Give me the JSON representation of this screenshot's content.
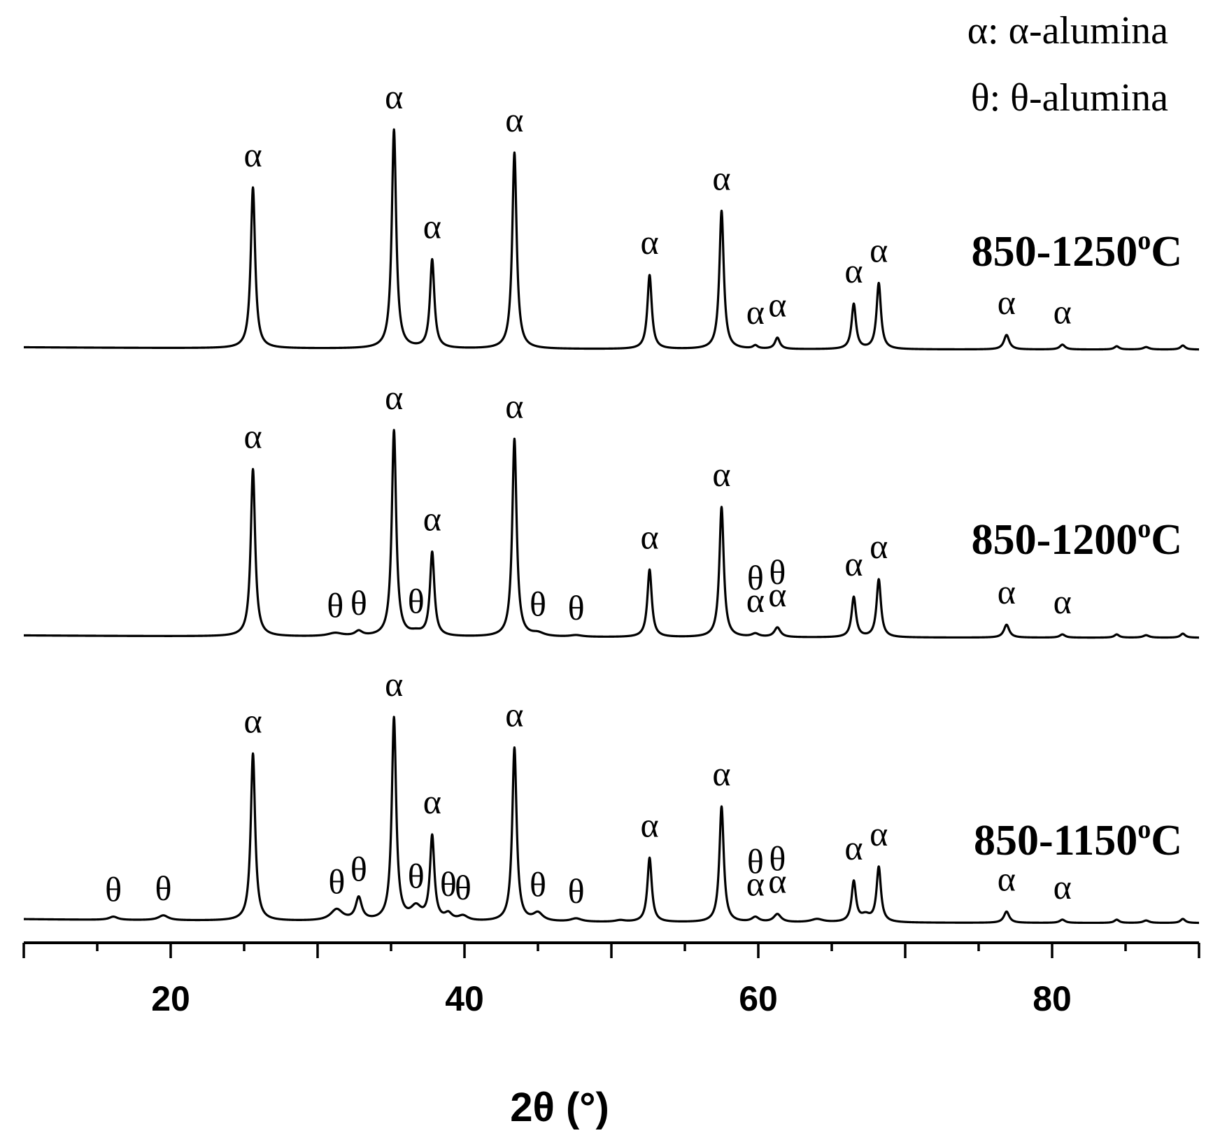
{
  "chart_data": {
    "type": "line",
    "xlabel": "2θ  (°)",
    "xlim": [
      10,
      90
    ],
    "xticks": [
      20,
      40,
      60,
      80
    ],
    "xtick_labels": [
      "20",
      "40",
      "60",
      "80"
    ],
    "grid": false,
    "legend": {
      "placement": "top-right",
      "entries": [
        "α: α-alumina",
        "θ: θ-alumina"
      ]
    },
    "series": [
      {
        "name": "850-1250°C",
        "label_main": "850-1250",
        "label_sup": "o",
        "label_unit": "C",
        "background": 1.5,
        "peaks": [
          {
            "x": 25.6,
            "h": 100,
            "w": 0.18
          },
          {
            "x": 35.2,
            "h": 136,
            "w": 0.18
          },
          {
            "x": 37.8,
            "h": 55,
            "w": 0.18
          },
          {
            "x": 43.4,
            "h": 122,
            "w": 0.18
          },
          {
            "x": 52.6,
            "h": 46,
            "w": 0.18
          },
          {
            "x": 57.5,
            "h": 86,
            "w": 0.18
          },
          {
            "x": 59.8,
            "h": 2,
            "w": 0.2
          },
          {
            "x": 61.3,
            "h": 7,
            "w": 0.2
          },
          {
            "x": 66.5,
            "h": 28,
            "w": 0.18
          },
          {
            "x": 68.2,
            "h": 41,
            "w": 0.18
          },
          {
            "x": 76.9,
            "h": 9,
            "w": 0.22
          },
          {
            "x": 80.7,
            "h": 3,
            "w": 0.22
          },
          {
            "x": 84.4,
            "h": 2,
            "w": 0.2
          },
          {
            "x": 86.4,
            "h": 1.5,
            "w": 0.25
          },
          {
            "x": 88.9,
            "h": 2.5,
            "w": 0.2
          }
        ],
        "annotations": [
          {
            "symbol": "α",
            "x": 25.6
          },
          {
            "symbol": "α",
            "x": 35.2
          },
          {
            "symbol": "α",
            "x": 37.8
          },
          {
            "symbol": "α",
            "x": 43.4
          },
          {
            "symbol": "α",
            "x": 52.6
          },
          {
            "symbol": "α",
            "x": 57.5
          },
          {
            "symbol": "α",
            "x": 59.8
          },
          {
            "symbol": "α",
            "x": 61.3
          },
          {
            "symbol": "α",
            "x": 66.5
          },
          {
            "symbol": "α",
            "x": 68.2
          },
          {
            "symbol": "α",
            "x": 76.9
          },
          {
            "symbol": "α",
            "x": 80.7
          }
        ]
      },
      {
        "name": "850-1200°C",
        "label_main": "850-1200",
        "label_sup": "o",
        "label_unit": "C",
        "background": 1.5,
        "peaks": [
          {
            "x": 25.6,
            "h": 104,
            "w": 0.18
          },
          {
            "x": 31.2,
            "h": 2,
            "w": 0.6
          },
          {
            "x": 32.8,
            "h": 3,
            "w": 0.3
          },
          {
            "x": 35.2,
            "h": 128,
            "w": 0.18
          },
          {
            "x": 36.7,
            "h": 2,
            "w": 0.5
          },
          {
            "x": 37.8,
            "h": 52,
            "w": 0.18
          },
          {
            "x": 43.4,
            "h": 123,
            "w": 0.18
          },
          {
            "x": 45.0,
            "h": 2,
            "w": 0.5
          },
          {
            "x": 47.6,
            "h": 1,
            "w": 0.5
          },
          {
            "x": 52.6,
            "h": 42,
            "w": 0.18
          },
          {
            "x": 57.5,
            "h": 81,
            "w": 0.18
          },
          {
            "x": 59.8,
            "h": 2,
            "w": 0.3
          },
          {
            "x": 61.3,
            "h": 6,
            "w": 0.25
          },
          {
            "x": 66.5,
            "h": 25,
            "w": 0.18
          },
          {
            "x": 68.2,
            "h": 36,
            "w": 0.18
          },
          {
            "x": 76.9,
            "h": 8,
            "w": 0.22
          },
          {
            "x": 80.7,
            "h": 2,
            "w": 0.22
          },
          {
            "x": 84.4,
            "h": 2,
            "w": 0.2
          },
          {
            "x": 86.4,
            "h": 1.5,
            "w": 0.25
          },
          {
            "x": 88.9,
            "h": 2.5,
            "w": 0.2
          }
        ],
        "annotations": [
          {
            "symbol": "α",
            "x": 25.6
          },
          {
            "symbol": "θ",
            "x": 31.2
          },
          {
            "symbol": "θ",
            "x": 32.8
          },
          {
            "symbol": "α",
            "x": 35.2
          },
          {
            "symbol": "θ",
            "x": 36.7
          },
          {
            "symbol": "α",
            "x": 37.8
          },
          {
            "symbol": "α",
            "x": 43.4
          },
          {
            "symbol": "θ",
            "x": 45.0
          },
          {
            "symbol": "θ",
            "x": 47.6
          },
          {
            "symbol": "α",
            "x": 52.6
          },
          {
            "symbol": "α",
            "x": 57.5
          },
          {
            "symbol": "α",
            "x": 59.8
          },
          {
            "symbol": "α",
            "x": 61.3
          },
          {
            "symbol": "θ",
            "x": 59.8
          },
          {
            "symbol": "θ",
            "x": 61.3
          },
          {
            "symbol": "α",
            "x": 66.5
          },
          {
            "symbol": "α",
            "x": 68.2
          },
          {
            "symbol": "α",
            "x": 76.9
          },
          {
            "symbol": "α",
            "x": 80.7
          }
        ]
      },
      {
        "name": "850-1150°C",
        "label_main": "850-1150",
        "label_sup": "o",
        "label_unit": "C",
        "background": 2.5,
        "peaks": [
          {
            "x": 16.1,
            "h": 2,
            "w": 0.35
          },
          {
            "x": 19.5,
            "h": 3,
            "w": 0.4
          },
          {
            "x": 25.6,
            "h": 104,
            "w": 0.18
          },
          {
            "x": 31.3,
            "h": 7,
            "w": 0.5
          },
          {
            "x": 32.8,
            "h": 14,
            "w": 0.25
          },
          {
            "x": 35.2,
            "h": 126,
            "w": 0.18
          },
          {
            "x": 36.7,
            "h": 8,
            "w": 0.45
          },
          {
            "x": 37.8,
            "h": 52,
            "w": 0.18
          },
          {
            "x": 38.9,
            "h": 4,
            "w": 0.3
          },
          {
            "x": 39.9,
            "h": 3,
            "w": 0.4
          },
          {
            "x": 43.4,
            "h": 108,
            "w": 0.18
          },
          {
            "x": 45.0,
            "h": 5,
            "w": 0.4
          },
          {
            "x": 47.6,
            "h": 2,
            "w": 0.45
          },
          {
            "x": 50.6,
            "h": 1,
            "w": 0.4
          },
          {
            "x": 52.6,
            "h": 40,
            "w": 0.18
          },
          {
            "x": 57.5,
            "h": 72,
            "w": 0.18
          },
          {
            "x": 59.8,
            "h": 3,
            "w": 0.3
          },
          {
            "x": 61.3,
            "h": 5,
            "w": 0.3
          },
          {
            "x": 64.0,
            "h": 2,
            "w": 0.5
          },
          {
            "x": 66.5,
            "h": 25,
            "w": 0.18
          },
          {
            "x": 67.3,
            "h": 4,
            "w": 0.4
          },
          {
            "x": 68.2,
            "h": 34,
            "w": 0.18
          },
          {
            "x": 76.9,
            "h": 7,
            "w": 0.22
          },
          {
            "x": 80.7,
            "h": 2,
            "w": 0.22
          },
          {
            "x": 84.4,
            "h": 2,
            "w": 0.2
          },
          {
            "x": 86.4,
            "h": 1.5,
            "w": 0.25
          },
          {
            "x": 88.9,
            "h": 2.5,
            "w": 0.2
          }
        ],
        "annotations": [
          {
            "symbol": "θ",
            "x": 16.1
          },
          {
            "symbol": "θ",
            "x": 19.5
          },
          {
            "symbol": "α",
            "x": 25.6
          },
          {
            "symbol": "θ",
            "x": 31.3
          },
          {
            "symbol": "θ",
            "x": 32.8
          },
          {
            "symbol": "α",
            "x": 35.2
          },
          {
            "symbol": "θ",
            "x": 36.7
          },
          {
            "symbol": "α",
            "x": 37.8
          },
          {
            "symbol": "θ",
            "x": 38.9
          },
          {
            "symbol": "θ",
            "x": 39.9
          },
          {
            "symbol": "α",
            "x": 43.4
          },
          {
            "symbol": "θ",
            "x": 45.0
          },
          {
            "symbol": "θ",
            "x": 47.6
          },
          {
            "symbol": "α",
            "x": 52.6
          },
          {
            "symbol": "α",
            "x": 57.5
          },
          {
            "symbol": "α",
            "x": 59.8
          },
          {
            "symbol": "α",
            "x": 61.3
          },
          {
            "symbol": "θ",
            "x": 59.8
          },
          {
            "symbol": "θ",
            "x": 61.3
          },
          {
            "symbol": "α",
            "x": 66.5
          },
          {
            "symbol": "α",
            "x": 68.2
          },
          {
            "symbol": "α",
            "x": 76.9
          },
          {
            "symbol": "α",
            "x": 80.7
          }
        ]
      }
    ]
  }
}
